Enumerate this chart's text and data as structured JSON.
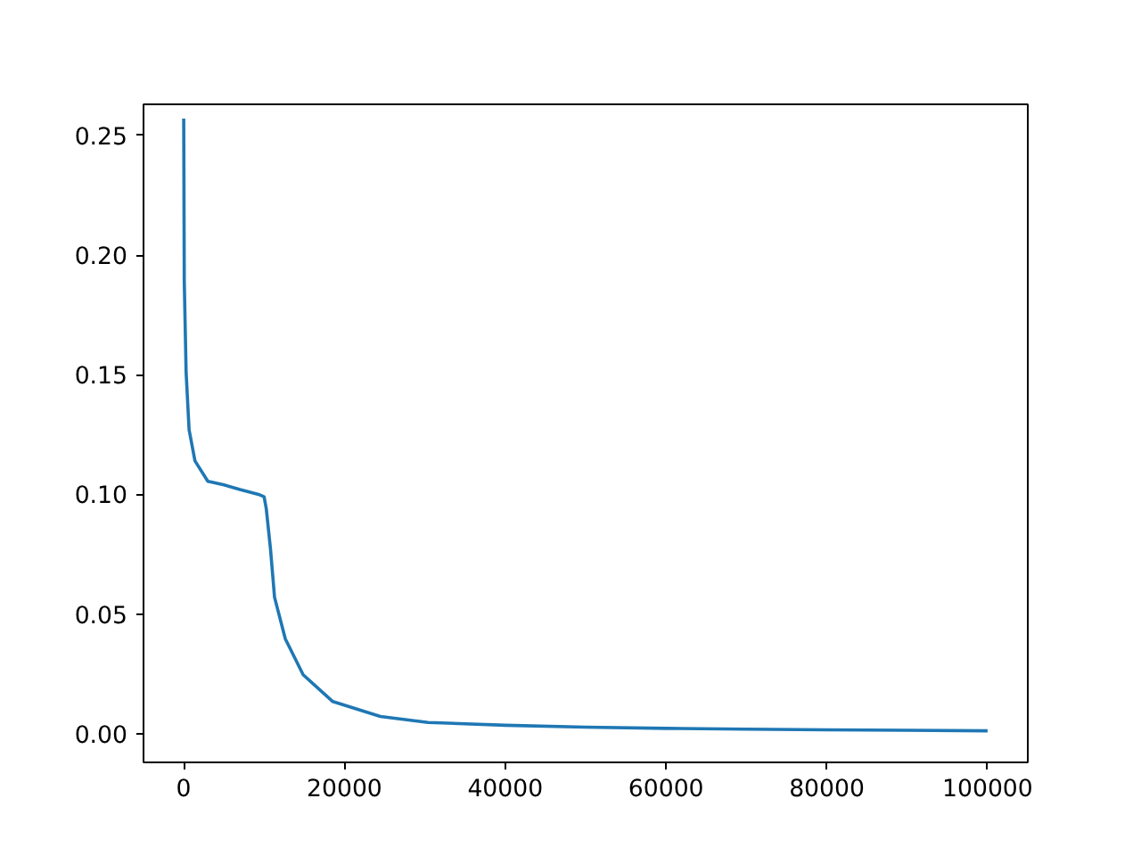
{
  "chart_data": {
    "type": "line",
    "color": "#1f77b4",
    "x": [
      0,
      70,
      300,
      670,
      1400,
      3000,
      5000,
      7000,
      9300,
      10000,
      10270,
      10800,
      11300,
      12640,
      14860,
      18550,
      24460,
      30400,
      40000,
      50000,
      60000,
      70000,
      80000,
      90000,
      100000
    ],
    "values": [
      0.257,
      0.189,
      0.151,
      0.127,
      0.114,
      0.1055,
      0.104,
      0.102,
      0.1,
      0.099,
      0.094,
      0.077,
      0.057,
      0.0396,
      0.0246,
      0.0134,
      0.0072,
      0.0047,
      0.0035,
      0.0027,
      0.0022,
      0.0019,
      0.0016,
      0.0014,
      0.0012
    ],
    "xlim": [
      -5000,
      105000
    ],
    "ylim": [
      -0.012,
      0.263
    ],
    "xticks": [
      0,
      20000,
      40000,
      60000,
      80000,
      100000
    ],
    "yticks": [
      {
        "value": 0,
        "label": "0.00"
      },
      {
        "value": 0.05,
        "label": "0.05"
      },
      {
        "value": 0.1,
        "label": "0.10"
      },
      {
        "value": 0.15,
        "label": "0.15"
      },
      {
        "value": 0.2,
        "label": "0.20"
      },
      {
        "value": 0.25,
        "label": "0.25"
      }
    ],
    "grid": false
  }
}
